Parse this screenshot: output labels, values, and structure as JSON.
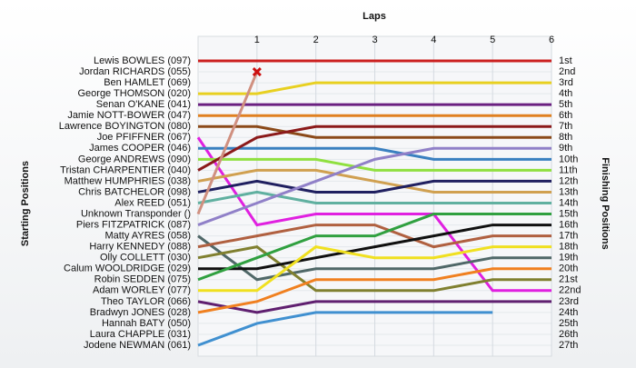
{
  "chart_data": {
    "type": "lap",
    "title": "Laps",
    "y_label": "Starting Positions",
    "y2_label": "Finishing Positions",
    "xlim": [
      0,
      6
    ],
    "xticks": [
      1,
      2,
      3,
      4,
      5,
      6
    ],
    "ylim": [
      1,
      27
    ],
    "grid": true,
    "finishing_positions": [
      "1st",
      "2nd",
      "3rd",
      "4th",
      "5th",
      "6th",
      "7th",
      "8th",
      "9th",
      "10th",
      "11th",
      "12th",
      "13th",
      "14th",
      "15th",
      "16th",
      "17th",
      "18th",
      "19th",
      "20th",
      "21st",
      "22nd",
      "23rd",
      "24th",
      "25th",
      "26th",
      "27th"
    ],
    "series": [
      {
        "name": "Lewis BOWLES (097)",
        "color": "#cc2020",
        "values": [
          1,
          1,
          1,
          1,
          1,
          1,
          1
        ]
      },
      {
        "name": "Jordan RICHARDS (055)",
        "values": [
          null,
          null,
          null,
          null,
          null,
          null,
          null
        ]
      },
      {
        "name": "Ben HAMLET (069)",
        "values": [
          null,
          null,
          null,
          null,
          null,
          null,
          null
        ]
      },
      {
        "name": "George THOMSON (020)",
        "color": "#e8d020",
        "values": [
          4,
          4,
          3,
          3,
          3,
          3,
          3
        ]
      },
      {
        "name": "Senan O'KANE (041)",
        "color": "#6a2080",
        "values": [
          5,
          5,
          5,
          5,
          5,
          5,
          5
        ]
      },
      {
        "name": "Jamie NOTT-BOWER (047)",
        "color": "#e08020",
        "values": [
          6,
          6,
          6,
          6,
          6,
          6,
          6
        ]
      },
      {
        "name": "Lawrence BOYINGTON (080)",
        "color": "#8b4a1a",
        "values": [
          7,
          7,
          8,
          8,
          8,
          8,
          8
        ]
      },
      {
        "name": "Joe PFIFFNER (067)",
        "color": "#e020e0",
        "values": [
          8,
          16,
          15,
          15,
          15,
          22,
          22
        ]
      },
      {
        "name": "James COOPER (046)",
        "color": "#3a80c0",
        "values": [
          9,
          9,
          9,
          9,
          10,
          10,
          10
        ]
      },
      {
        "name": "George ANDREWS (090)",
        "color": "#90e040",
        "values": [
          10,
          10,
          10,
          11,
          11,
          11,
          11
        ]
      },
      {
        "name": "Tristan CHARPENTIER (040)",
        "color": "#8b1a1a",
        "values": [
          11,
          8,
          7,
          7,
          7,
          7,
          7
        ]
      },
      {
        "name": "Matthew HUMPHRIES (038)",
        "color": "#d0a050",
        "values": [
          12,
          11,
          11,
          12,
          13,
          13,
          13
        ]
      },
      {
        "name": "Chris BATCHELOR (098)",
        "color": "#202060",
        "values": [
          13,
          12,
          13,
          13,
          12,
          12,
          12
        ]
      },
      {
        "name": "Alex REED (051)",
        "color": "#60b0a0",
        "values": [
          14,
          13,
          14,
          14,
          14,
          14,
          14
        ]
      },
      {
        "name": "Unknown Transponder ()",
        "color": "#d09080",
        "marker": "x",
        "values": [
          15,
          2,
          null,
          null,
          null,
          null,
          null
        ]
      },
      {
        "name": "Piers FITZPATRICK (087)",
        "color": "#9080c8",
        "values": [
          16,
          14,
          12,
          10,
          9,
          9,
          9
        ]
      },
      {
        "name": "Matty AYRES (058)",
        "color": "#506868",
        "values": [
          17,
          21,
          20,
          20,
          20,
          19,
          19
        ]
      },
      {
        "name": "Harry KENNEDY (088)",
        "color": "#b06040",
        "values": [
          18,
          17,
          16,
          16,
          18,
          17,
          17
        ]
      },
      {
        "name": "Olly COLLETT (030)",
        "color": "#808030",
        "values": [
          19,
          18,
          22,
          22,
          22,
          21,
          21
        ]
      },
      {
        "name": "Calum WOOLDRIDGE (029)",
        "color": "#101010",
        "values": [
          20,
          20,
          19,
          18,
          17,
          16,
          16
        ]
      },
      {
        "name": "Robin SEDDEN (075)",
        "color": "#30a040",
        "values": [
          21,
          19,
          17,
          17,
          15,
          15,
          15
        ]
      },
      {
        "name": "Adam WORLEY (077)",
        "color": "#f0e020",
        "values": [
          22,
          22,
          18,
          19,
          19,
          18,
          18
        ]
      },
      {
        "name": "Theo TAYLOR (066)",
        "color": "#602070",
        "values": [
          23,
          24,
          23,
          23,
          23,
          23,
          23
        ]
      },
      {
        "name": "Bradwyn JONES (028)",
        "color": "#f08020",
        "values": [
          24,
          23,
          21,
          21,
          21,
          20,
          20
        ]
      },
      {
        "name": "Hannah BATY (050)",
        "values": [
          null,
          null,
          null,
          null,
          null,
          null,
          null
        ]
      },
      {
        "name": "Laura CHAPPLE (031)",
        "values": [
          null,
          null,
          null,
          null,
          null,
          null,
          null
        ]
      },
      {
        "name": "Jodene NEWMAN (061)",
        "color": "#4090d0",
        "values": [
          27,
          25,
          24,
          24,
          24,
          24,
          null
        ]
      }
    ]
  }
}
